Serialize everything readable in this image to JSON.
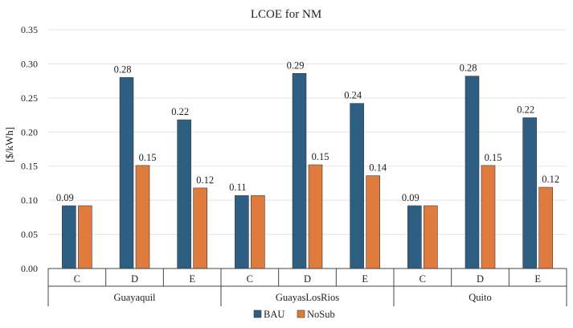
{
  "chart_data": {
    "type": "bar",
    "title": "LCOE for NM",
    "ylabel": "[$/kWh]",
    "xlabel": "",
    "ylim": [
      0,
      0.35
    ],
    "yticks": [
      0.0,
      0.05,
      0.1,
      0.15,
      0.2,
      0.25,
      0.3,
      0.35
    ],
    "ytick_labels": [
      "0.00",
      "0.05",
      "0.10",
      "0.15",
      "0.20",
      "0.25",
      "0.30",
      "0.35"
    ],
    "grid": true,
    "legend_position": "bottom",
    "groups": [
      "Guayaquil",
      "GuayasLosRios",
      "Quito"
    ],
    "categories": [
      "C",
      "D",
      "E",
      "C",
      "D",
      "E",
      "C",
      "D",
      "E"
    ],
    "series": [
      {
        "name": "BAU",
        "color": "#2E5F82",
        "values": [
          0.092,
          0.28,
          0.218,
          0.107,
          0.286,
          0.242,
          0.092,
          0.282,
          0.221
        ],
        "labels": [
          "0.09",
          "0.28",
          "0.22",
          "0.11",
          "0.29",
          "0.24",
          "0.09",
          "0.28",
          "0.22"
        ]
      },
      {
        "name": "NoSub",
        "color": "#E07B3E",
        "values": [
          0.092,
          0.151,
          0.118,
          0.107,
          0.152,
          0.136,
          0.092,
          0.151,
          0.119
        ],
        "labels": [
          "",
          "0.15",
          "0.12",
          "",
          "0.15",
          "0.14",
          "",
          "0.15",
          "0.12"
        ]
      }
    ]
  }
}
